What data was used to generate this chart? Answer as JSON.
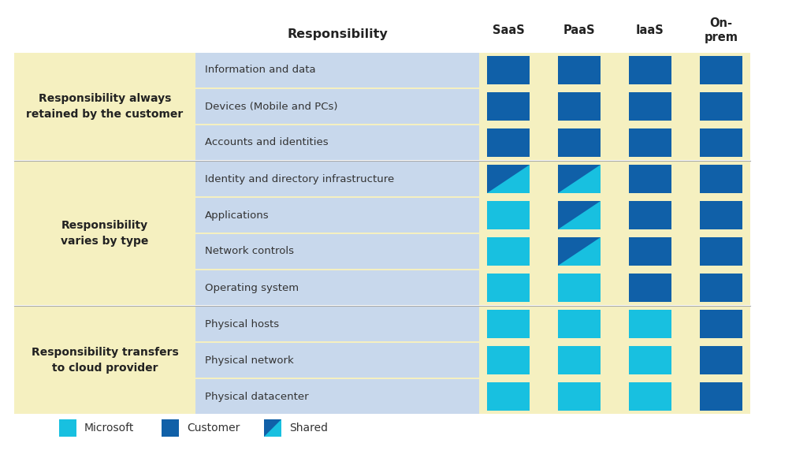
{
  "columns": [
    "SaaS",
    "PaaS",
    "IaaS",
    "On-\nprem"
  ],
  "rows": [
    "Information and data",
    "Devices (Mobile and PCs)",
    "Accounts and identities",
    "Identity and directory infrastructure",
    "Applications",
    "Network controls",
    "Operating system",
    "Physical hosts",
    "Physical network",
    "Physical datacenter"
  ],
  "groups": [
    {
      "label": "Responsibility always\nretained by the customer",
      "rows": [
        0,
        1,
        2
      ]
    },
    {
      "label": "Responsibility\nvaries by type",
      "rows": [
        3,
        4,
        5,
        6
      ]
    },
    {
      "label": "Responsibility transfers\nto cloud provider",
      "rows": [
        7,
        8,
        9
      ]
    }
  ],
  "cell_types": [
    [
      "customer",
      "customer",
      "customer",
      "customer"
    ],
    [
      "customer",
      "customer",
      "customer",
      "customer"
    ],
    [
      "customer",
      "customer",
      "customer",
      "customer"
    ],
    [
      "shared",
      "shared",
      "customer",
      "customer"
    ],
    [
      "microsoft",
      "shared",
      "customer",
      "customer"
    ],
    [
      "microsoft",
      "shared",
      "customer",
      "customer"
    ],
    [
      "microsoft",
      "microsoft",
      "customer",
      "customer"
    ],
    [
      "microsoft",
      "microsoft",
      "microsoft",
      "customer"
    ],
    [
      "microsoft",
      "microsoft",
      "microsoft",
      "customer"
    ],
    [
      "microsoft",
      "microsoft",
      "microsoft",
      "customer"
    ]
  ],
  "colors": {
    "customer": "#1060a8",
    "microsoft": "#18c0e0",
    "group_bg": "#f5f0c0",
    "row_label_bg": "#c8d8ec",
    "white": "#ffffff",
    "text_dark": "#222222",
    "text_row": "#333333",
    "separator": "#aaaaaa"
  },
  "legend": [
    {
      "label": "Microsoft",
      "type": "microsoft"
    },
    {
      "label": "Customer",
      "type": "customer"
    },
    {
      "label": "Shared",
      "type": "shared"
    }
  ]
}
